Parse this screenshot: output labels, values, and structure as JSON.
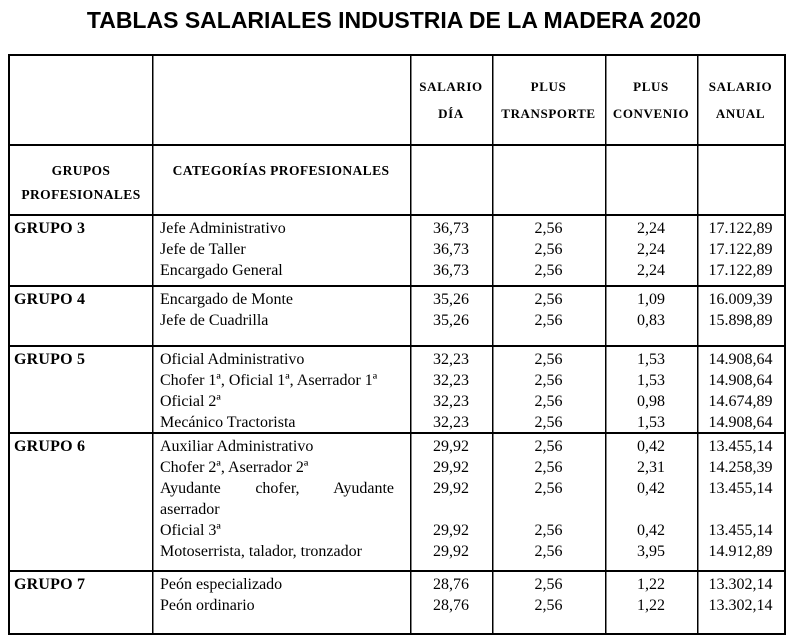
{
  "title": "TABLAS SALARIALES INDUSTRIA DE LA MADERA 2020",
  "table": {
    "headers": {
      "salario_dia": [
        "SALARIO",
        "DÍA"
      ],
      "plus_transporte": [
        "PLUS",
        "TRANSPORTE"
      ],
      "plus_convenio": [
        "PLUS",
        "CONVENIO"
      ],
      "salario_anual": [
        "SALARIO",
        "ANUAL"
      ],
      "grupos": [
        "GRUPOS",
        "PROFESIONALES"
      ],
      "categorias": "CATEGORÍAS PROFESIONALES"
    },
    "groups": [
      {
        "name": "GRUPO 3",
        "rows": [
          {
            "categoria": "Jefe Administrativo",
            "salario_dia": "36,73",
            "plus_transporte": "2,56",
            "plus_convenio": "2,24",
            "salario_anual": "17.122,89"
          },
          {
            "categoria": "Jefe de Taller",
            "salario_dia": "36,73",
            "plus_transporte": "2,56",
            "plus_convenio": "2,24",
            "salario_anual": "17.122,89"
          },
          {
            "categoria": "Encargado General",
            "salario_dia": "36,73",
            "plus_transporte": "2,56",
            "plus_convenio": "2,24",
            "salario_anual": "17.122,89"
          }
        ]
      },
      {
        "name": "GRUPO 4",
        "rows": [
          {
            "categoria": "Encargado de Monte",
            "salario_dia": "35,26",
            "plus_transporte": "2,56",
            "plus_convenio": "1,09",
            "salario_anual": "16.009,39"
          },
          {
            "categoria": "Jefe de Cuadrilla",
            "salario_dia": "35,26",
            "plus_transporte": "2,56",
            "plus_convenio": "0,83",
            "salario_anual": "15.898,89"
          }
        ]
      },
      {
        "name": "GRUPO 5",
        "rows": [
          {
            "categoria": "Oficial Administrativo",
            "salario_dia": "32,23",
            "plus_transporte": "2,56",
            "plus_convenio": "1,53",
            "salario_anual": "14.908,64"
          },
          {
            "categoria": "Chofer 1ª, Oficial 1ª, Aserrador 1ª",
            "salario_dia": "32,23",
            "plus_transporte": "2,56",
            "plus_convenio": "1,53",
            "salario_anual": "14.908,64"
          },
          {
            "categoria": "Oficial 2ª",
            "salario_dia": "32,23",
            "plus_transporte": "2,56",
            "plus_convenio": "0,98",
            "salario_anual": "14.674,89"
          },
          {
            "categoria": "Mecánico Tractorista",
            "salario_dia": "32,23",
            "plus_transporte": "2,56",
            "plus_convenio": "1,53",
            "salario_anual": "14.908,64"
          }
        ]
      },
      {
        "name": "GRUPO 6",
        "rows": [
          {
            "categoria": "Auxiliar Administrativo",
            "salario_dia": "29,92",
            "plus_transporte": "2,56",
            "plus_convenio": "0,42",
            "salario_anual": "13.455,14"
          },
          {
            "categoria": "Chofer 2ª, Aserrador 2ª",
            "salario_dia": "29,92",
            "plus_transporte": "2,56",
            "plus_convenio": "2,31",
            "salario_anual": "14.258,39"
          },
          {
            "categoria": "Ayudante chofer, Ayudante aserrador",
            "salario_dia": "29,92",
            "plus_transporte": "2,56",
            "plus_convenio": "0,42",
            "salario_anual": "13.455,14"
          },
          {
            "categoria": "Oficial 3ª",
            "salario_dia": "29,92",
            "plus_transporte": "2,56",
            "plus_convenio": "0,42",
            "salario_anual": "13.455,14"
          },
          {
            "categoria": "Motoserrista, talador, tronzador",
            "salario_dia": "29,92",
            "plus_transporte": "2,56",
            "plus_convenio": "3,95",
            "salario_anual": "14.912,89"
          }
        ]
      },
      {
        "name": "GRUPO 7",
        "rows": [
          {
            "categoria": "Peón especializado",
            "salario_dia": "28,76",
            "plus_transporte": "2,56",
            "plus_convenio": "1,22",
            "salario_anual": "13.302,14"
          },
          {
            "categoria": "Peón ordinario",
            "salario_dia": "28,76",
            "plus_transporte": "2,56",
            "plus_convenio": "1,22",
            "salario_anual": "13.302,14"
          }
        ]
      }
    ]
  }
}
